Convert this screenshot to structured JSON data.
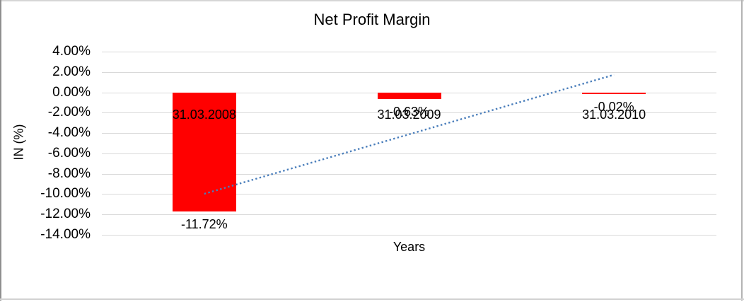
{
  "chart_data": {
    "type": "bar",
    "title": "Net Profit Margin",
    "xlabel": "Years",
    "ylabel": "IN (%)",
    "categories": [
      "31.03.2008",
      "31.03.2009",
      "31.03.2010"
    ],
    "values": [
      -11.72,
      -0.63,
      -0.02
    ],
    "data_labels": [
      "-11.72%",
      "-0.63%",
      "-0.02%"
    ],
    "y_ticks": [
      {
        "value": 4,
        "label": "4.00%"
      },
      {
        "value": 2,
        "label": "2.00%"
      },
      {
        "value": 0,
        "label": "0.00%"
      },
      {
        "value": -2,
        "label": "-2.00%"
      },
      {
        "value": -4,
        "label": "-4.00%"
      },
      {
        "value": -6,
        "label": "-6.00%"
      },
      {
        "value": -8,
        "label": "-8.00%"
      },
      {
        "value": -10,
        "label": "-10.00%"
      },
      {
        "value": -12,
        "label": "-12.00%"
      },
      {
        "value": -14,
        "label": "-14.00%"
      }
    ],
    "ylim": [
      -14,
      4
    ],
    "grid": true,
    "legend": "none",
    "bar_color": "#ff0000",
    "gridline_color": "#d9d9d9",
    "trendline": {
      "type": "linear",
      "style": "dotted",
      "color": "#4a7ebb"
    }
  }
}
